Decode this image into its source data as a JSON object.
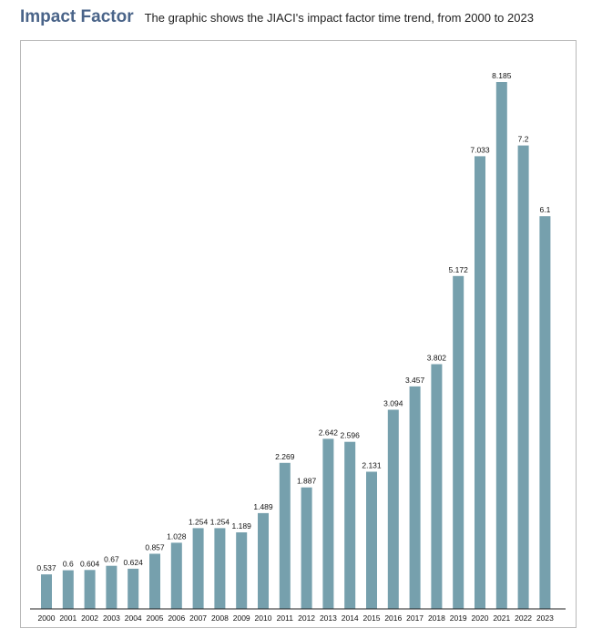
{
  "header": {
    "title": "Impact Factor",
    "subtitle": "The graphic shows the JIACI's impact factor time trend, from 2000 to 2023"
  },
  "colors": {
    "bar": "#76a0ad",
    "axis": "#222222",
    "title": "#4a6489",
    "frame": "#b8b8b8"
  },
  "chart_data": {
    "type": "bar",
    "title": "Impact Factor",
    "subtitle": "The graphic shows the JIACI's impact factor time trend, from 2000 to 2023",
    "categories": [
      "2000",
      "2001",
      "2002",
      "2003",
      "2004",
      "2005",
      "2006",
      "2007",
      "2008",
      "2009",
      "2010",
      "2011",
      "2012",
      "2013",
      "2014",
      "2015",
      "2016",
      "2017",
      "2018",
      "2019",
      "2020",
      "2021",
      "2022",
      "2023"
    ],
    "values": [
      0.537,
      0.6,
      0.604,
      0.67,
      0.624,
      0.857,
      1.028,
      1.254,
      1.254,
      1.189,
      1.489,
      2.269,
      1.887,
      2.642,
      2.596,
      2.131,
      3.094,
      3.457,
      3.802,
      5.172,
      7.033,
      8.185,
      7.2,
      6.1
    ],
    "value_labels": [
      "0.537",
      "0.6",
      "0.604",
      "0.67",
      "0.624",
      "0.857",
      "1.028",
      "1.254",
      "1.254",
      "1.189",
      "1.489",
      "2.269",
      "1.887",
      "2.642",
      "2.596",
      "2.131",
      "3.094",
      "3.457",
      "3.802",
      "5.172",
      "7.033",
      "8.185",
      "7.2",
      "6.1"
    ],
    "xlabel": "",
    "ylabel": "",
    "ylim": [
      0,
      8.185
    ],
    "grid": false,
    "legend": "none"
  }
}
